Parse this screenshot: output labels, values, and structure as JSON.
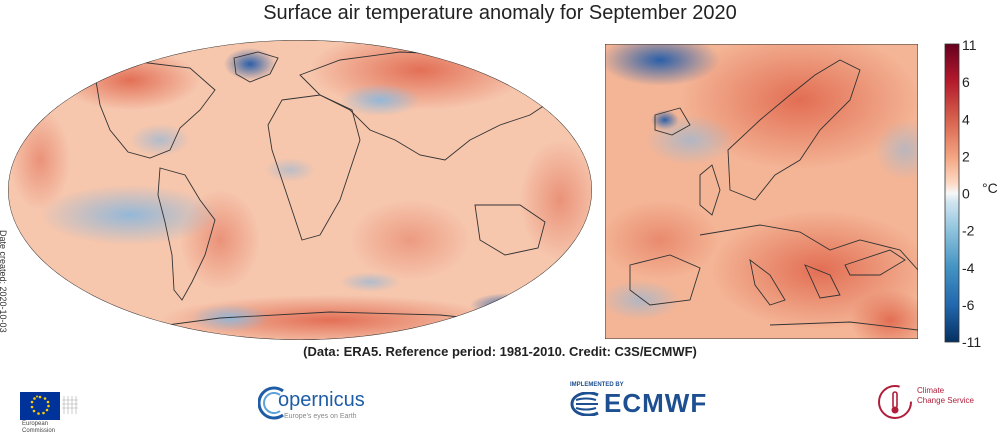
{
  "title": "Surface air temperature anomaly for September 2020",
  "credit": "(Data: ERA5.  Reference period: 1981-2010.  Credit: C3S/ECMWF)",
  "date_created": "Date created: 2020-10-03",
  "colorbar": {
    "unit": "°C",
    "ticks": [
      "11",
      "6",
      "4",
      "2",
      "0",
      "-2",
      "-4",
      "-6",
      "-11"
    ],
    "colors": [
      "#67001f",
      "#b2182b",
      "#d6604d",
      "#f4a582",
      "#fddbc7",
      "#f7f7f7",
      "#d1e5f0",
      "#92c5de",
      "#4393c3",
      "#2166ac",
      "#053061"
    ]
  },
  "logos": {
    "eu": {
      "line1": "European",
      "line2": "Commission"
    },
    "copernicus": {
      "name": "opernicus",
      "tagline": "Europe's eyes on Earth"
    },
    "ecmwf": {
      "implemented_by": "IMPLEMENTED BY",
      "name": "ECMWF"
    },
    "c3s": {
      "line1": "Climate",
      "line2": "Change Service"
    }
  },
  "colors": {
    "warm": "#f4a582",
    "hot": "#d6604d",
    "cold": "#4393c3",
    "neutral": "#fbe3d4"
  }
}
